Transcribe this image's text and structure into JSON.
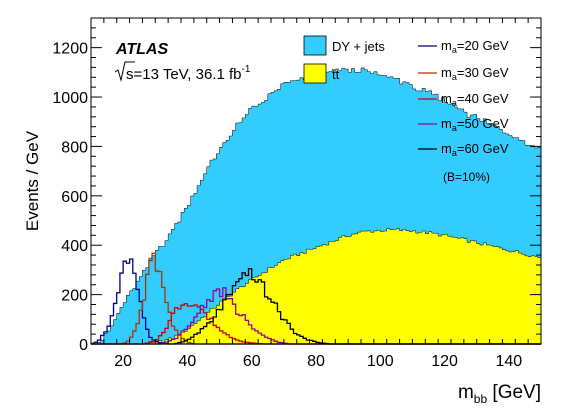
{
  "chart_data": {
    "type": "area",
    "experiment": "ATLAS",
    "energy_label_sqrt": "s",
    "energy_label_rest": "=13 TeV, 36.1 fb",
    "lumi_exponent": "-1",
    "xlabel_main": "m",
    "xlabel_sub": "bb",
    "xlabel_unit": " [GeV]",
    "ylabel": "Events / GeV",
    "xlim": [
      10,
      150
    ],
    "ylim": [
      0,
      1320
    ],
    "x_ticks": [
      20,
      40,
      60,
      80,
      100,
      120,
      140
    ],
    "y_ticks": [
      0,
      200,
      400,
      600,
      800,
      1000,
      1200
    ],
    "bin_width": 1,
    "legend_left": [
      {
        "name": "DY + jets",
        "color": "#33ccff"
      },
      {
        "name": "tt̄",
        "color": "#ffff00"
      }
    ],
    "legend_right": [
      {
        "name_main": "m",
        "name_sub": "a",
        "name_rest": "=20 GeV",
        "color": "#00007f"
      },
      {
        "name_main": "m",
        "name_sub": "a",
        "name_rest": "=30 GeV",
        "color": "#aa3300"
      },
      {
        "name_main": "m",
        "name_sub": "a",
        "name_rest": "=40 GeV",
        "color": "#cc0000"
      },
      {
        "name_main": "m",
        "name_sub": "a",
        "name_rest": "=50 GeV",
        "color": "#990099"
      },
      {
        "name_main": "m",
        "name_sub": "a",
        "name_rest": "=60 GeV",
        "color": "#000000"
      }
    ],
    "branching_note": "(B=10%)",
    "stack_backgrounds": [
      {
        "name": "tt̄",
        "color": "#ffff00",
        "x": [
          10,
          20,
          25,
          30,
          35,
          40,
          45,
          50,
          55,
          60,
          65,
          70,
          75,
          80,
          85,
          90,
          95,
          100,
          105,
          110,
          115,
          120,
          125,
          130,
          135,
          140,
          145,
          150
        ],
        "y": [
          0,
          0,
          0,
          5,
          20,
          60,
          110,
          165,
          215,
          260,
          300,
          340,
          365,
          390,
          415,
          440,
          455,
          460,
          462,
          458,
          450,
          440,
          425,
          410,
          395,
          380,
          365,
          350
        ]
      },
      {
        "name": "DY + jets",
        "color": "#33ccff",
        "x": [
          10,
          13,
          16,
          20,
          25,
          30,
          35,
          40,
          45,
          50,
          55,
          60,
          65,
          70,
          75,
          80,
          85,
          90,
          95,
          100,
          105,
          110,
          115,
          120,
          125,
          130,
          135,
          140,
          145,
          150
        ],
        "y": [
          0,
          10,
          60,
          160,
          260,
          360,
          430,
          500,
          570,
          620,
          660,
          690,
          700,
          710,
          705,
          700,
          690,
          670,
          650,
          630,
          610,
          585,
          565,
          545,
          525,
          505,
          490,
          475,
          455,
          440
        ]
      }
    ],
    "signals": [
      {
        "name": "m_a=20 GeV",
        "color": "#00007f",
        "x": [
          10,
          12,
          14,
          16,
          18,
          20,
          21,
          22,
          23,
          24,
          25,
          26,
          27,
          28,
          29,
          30,
          32,
          34
        ],
        "y": [
          0,
          10,
          40,
          90,
          170,
          290,
          330,
          320,
          310,
          260,
          200,
          130,
          80,
          40,
          20,
          10,
          3,
          0
        ]
      },
      {
        "name": "m_a=30 GeV",
        "color": "#aa3300",
        "x": [
          20,
          22,
          24,
          26,
          27,
          28,
          29,
          30,
          31,
          32,
          33,
          34,
          35,
          36,
          38,
          40,
          42
        ],
        "y": [
          0,
          15,
          60,
          150,
          220,
          300,
          350,
          320,
          260,
          280,
          210,
          150,
          100,
          60,
          25,
          8,
          0
        ]
      },
      {
        "name": "m_a=40 GeV",
        "color": "#cc0000",
        "x": [
          26,
          30,
          32,
          34,
          36,
          38,
          40,
          42,
          44,
          46,
          48,
          50,
          52,
          54,
          56,
          58,
          60,
          64
        ],
        "y": [
          0,
          10,
          40,
          80,
          130,
          160,
          175,
          160,
          150,
          110,
          90,
          60,
          40,
          25,
          15,
          8,
          4,
          0
        ]
      },
      {
        "name": "m_a=50 GeV",
        "color": "#990099",
        "x": [
          32,
          36,
          40,
          42,
          44,
          46,
          48,
          50,
          52,
          54,
          56,
          58,
          60,
          62,
          64,
          66,
          68,
          72
        ],
        "y": [
          0,
          20,
          60,
          100,
          140,
          170,
          200,
          220,
          200,
          160,
          120,
          110,
          60,
          45,
          30,
          20,
          8,
          0
        ]
      },
      {
        "name": "m_a=60 GeV",
        "color": "#000000",
        "x": [
          36,
          40,
          44,
          48,
          50,
          52,
          54,
          56,
          58,
          60,
          62,
          64,
          66,
          68,
          70,
          72,
          74,
          76,
          78,
          80,
          84
        ],
        "y": [
          0,
          15,
          50,
          100,
          140,
          180,
          210,
          240,
          270,
          300,
          250,
          220,
          180,
          140,
          100,
          70,
          40,
          25,
          15,
          8,
          0
        ]
      }
    ]
  }
}
